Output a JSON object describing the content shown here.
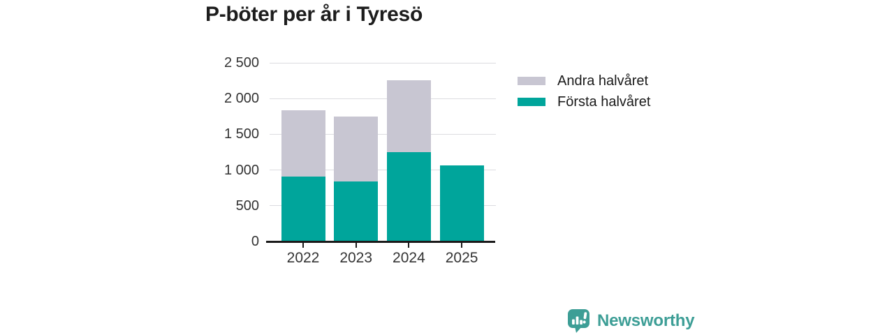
{
  "title": "P-böter per år i Tyresö",
  "chart_data": {
    "type": "bar",
    "stacked": true,
    "title": "P-böter per år i Tyresö",
    "categories": [
      "2022",
      "2023",
      "2024",
      "2025"
    ],
    "series": [
      {
        "name": "Första halvåret",
        "color": "#00a59b",
        "values": [
          905,
          840,
          1250,
          1065
        ]
      },
      {
        "name": "Andra halvåret",
        "color": "#c8c6d2",
        "values": [
          935,
          910,
          1005,
          0
        ]
      }
    ],
    "xlabel": "",
    "ylabel": "",
    "ylim": [
      0,
      2500
    ],
    "ytick_interval": 500,
    "ytick_labels": [
      "0",
      "500",
      "1 000",
      "1 500",
      "2 000",
      "2 500"
    ],
    "grid": true,
    "legend_position": "right",
    "legend": [
      {
        "label": "Andra halvåret",
        "color": "#c8c6d2"
      },
      {
        "label": "Första halvåret",
        "color": "#00a59b"
      }
    ]
  },
  "footer": {
    "brand": "Newsworthy",
    "brand_color": "#3d9e96",
    "logo_icon": "speech-bubble-bar-chart-icon"
  },
  "colors": {
    "first_half": "#00a59b",
    "second_half": "#c8c6d2",
    "grid": "#dcdce0",
    "axis": "#1a1a1a",
    "tick_text": "#333333",
    "title_text": "#1d1d1d"
  }
}
